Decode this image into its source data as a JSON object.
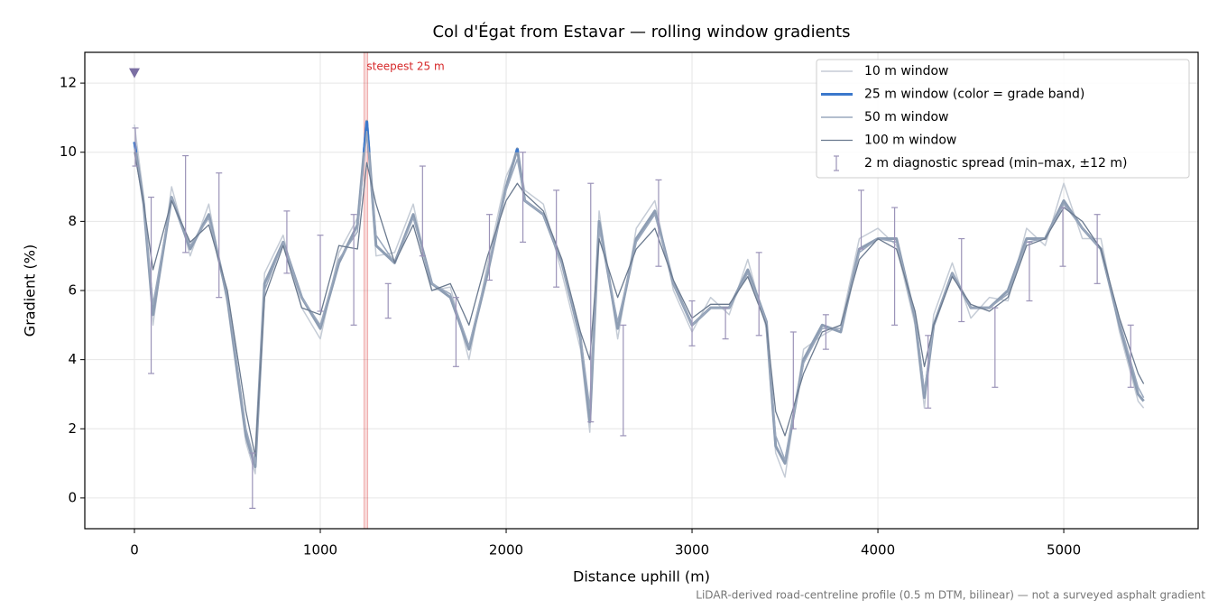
{
  "chart_data": {
    "type": "line",
    "title": "Col d'Égat from Estavar — rolling window gradients",
    "xlabel": "Distance uphill (m)",
    "ylabel": "Gradient (%)",
    "footnote": "LiDAR-derived road-centreline profile (0.5 m DTM, bilinear) — not a surveyed asphalt gradient",
    "x": [
      0,
      50,
      100,
      200,
      300,
      400,
      500,
      600,
      650,
      700,
      800,
      900,
      1000,
      1100,
      1200,
      1250,
      1300,
      1400,
      1500,
      1600,
      1700,
      1800,
      1900,
      2000,
      2060,
      2100,
      2200,
      2300,
      2400,
      2450,
      2500,
      2600,
      2700,
      2800,
      2900,
      3000,
      3100,
      3200,
      3300,
      3400,
      3450,
      3500,
      3600,
      3700,
      3800,
      3900,
      4000,
      4100,
      4200,
      4250,
      4300,
      4400,
      4500,
      4600,
      4700,
      4800,
      4900,
      5000,
      5100,
      5200,
      5300,
      5400,
      5430
    ],
    "series": [
      {
        "name": "10 m window",
        "color": "#c5ccd6",
        "width": 1.5,
        "values": [
          10.8,
          8.7,
          5.0,
          9.0,
          7.0,
          8.5,
          5.6,
          1.6,
          0.7,
          6.5,
          7.6,
          5.5,
          4.6,
          7.1,
          8.1,
          10.7,
          7.0,
          7.1,
          8.5,
          6.0,
          6.1,
          4.0,
          6.8,
          9.3,
          10.0,
          8.9,
          8.5,
          6.5,
          4.3,
          1.9,
          8.3,
          4.6,
          7.8,
          8.6,
          6.0,
          4.8,
          5.8,
          5.3,
          6.9,
          4.9,
          1.3,
          0.6,
          4.3,
          4.7,
          5.0,
          7.5,
          7.8,
          7.3,
          5.0,
          2.6,
          5.3,
          6.8,
          5.2,
          5.8,
          5.7,
          7.8,
          7.3,
          9.1,
          7.5,
          7.5,
          4.8,
          2.8,
          2.6
        ]
      },
      {
        "name": "25 m window (color = grade band)",
        "color": "#8d9db3",
        "width": 3,
        "band_color": "#3b78cc",
        "band_above": 10,
        "values": [
          10.3,
          8.5,
          5.3,
          8.7,
          7.2,
          8.2,
          5.8,
          1.8,
          0.9,
          6.2,
          7.4,
          5.8,
          4.9,
          6.8,
          7.9,
          10.9,
          7.3,
          6.8,
          8.2,
          6.2,
          5.8,
          4.3,
          6.5,
          9.0,
          10.1,
          8.6,
          8.2,
          6.8,
          4.6,
          2.2,
          8.0,
          4.9,
          7.5,
          8.3,
          6.2,
          5.0,
          5.5,
          5.5,
          6.6,
          5.1,
          1.5,
          1.0,
          4.0,
          5.0,
          4.8,
          7.2,
          7.5,
          7.5,
          5.2,
          2.9,
          5.0,
          6.5,
          5.5,
          5.5,
          6.0,
          7.5,
          7.5,
          8.6,
          7.8,
          7.2,
          5.0,
          3.0,
          2.8
        ]
      },
      {
        "name": "50 m window",
        "color": "#9aa8bd",
        "width": 1.5,
        "values": [
          10.1,
          8.5,
          5.6,
          8.7,
          7.3,
          8.1,
          5.9,
          2.0,
          1.0,
          6.0,
          7.4,
          5.8,
          5.0,
          6.9,
          7.7,
          10.6,
          7.6,
          6.8,
          8.1,
          6.2,
          5.9,
          4.4,
          6.6,
          8.9,
          9.8,
          8.6,
          8.2,
          6.8,
          4.7,
          2.6,
          7.8,
          5.1,
          7.4,
          8.2,
          6.2,
          5.0,
          5.5,
          5.5,
          6.5,
          5.1,
          1.8,
          1.1,
          3.9,
          4.9,
          4.9,
          7.1,
          7.5,
          7.4,
          5.3,
          3.1,
          5.0,
          6.5,
          5.5,
          5.5,
          5.9,
          7.4,
          7.5,
          8.5,
          7.8,
          7.2,
          5.1,
          3.2,
          2.9
        ]
      },
      {
        "name": "100 m window",
        "color": "#6b7a8f",
        "width": 1.3,
        "values": [
          10.0,
          8.5,
          6.6,
          8.6,
          7.4,
          7.9,
          6.0,
          2.5,
          1.2,
          5.8,
          7.3,
          5.5,
          5.3,
          7.3,
          7.2,
          9.7,
          8.5,
          6.8,
          7.9,
          6.0,
          6.2,
          5.0,
          7.0,
          8.6,
          9.1,
          8.8,
          8.3,
          6.9,
          4.8,
          4.0,
          7.5,
          5.8,
          7.2,
          7.8,
          6.3,
          5.2,
          5.6,
          5.6,
          6.4,
          5.0,
          2.5,
          1.8,
          3.6,
          4.8,
          5.0,
          6.9,
          7.5,
          7.2,
          5.4,
          3.8,
          5.0,
          6.4,
          5.6,
          5.4,
          5.8,
          7.3,
          7.5,
          8.4,
          8.0,
          7.2,
          5.2,
          3.6,
          3.3
        ]
      }
    ],
    "errorbars": {
      "name": "2 m diagnostic spread (min–max, ±12 m)",
      "color": "#9b93b8",
      "x": [
        5,
        90,
        275,
        455,
        635,
        820,
        1000,
        1180,
        1365,
        1550,
        1730,
        1910,
        2090,
        2270,
        2455,
        2630,
        2820,
        3000,
        3180,
        3360,
        3545,
        3720,
        3910,
        4090,
        4270,
        4450,
        4630,
        4815,
        4995,
        5180,
        5360
      ],
      "low": [
        9.6,
        3.6,
        7.1,
        5.8,
        -0.3,
        6.5,
        5.4,
        5.0,
        5.2,
        7.0,
        3.8,
        6.3,
        7.4,
        6.1,
        2.2,
        1.8,
        6.7,
        4.4,
        4.6,
        4.7,
        2.0,
        4.3,
        7.2,
        5.0,
        2.6,
        5.1,
        3.2,
        5.7,
        6.7,
        6.2,
        3.2
      ],
      "high": [
        10.7,
        8.7,
        9.9,
        9.4,
        1.3,
        8.3,
        7.6,
        8.2,
        6.2,
        9.6,
        5.8,
        8.2,
        10.0,
        8.9,
        9.1,
        5.0,
        9.2,
        5.7,
        5.5,
        7.1,
        4.8,
        5.3,
        8.9,
        8.4,
        4.7,
        7.5,
        5.5,
        7.4,
        8.4,
        8.2,
        5.0
      ]
    },
    "marker": {
      "x": 0,
      "y": 12.3,
      "color": "#7b6fa3"
    },
    "highlight": {
      "label": "steepest 25 m",
      "x_range": [
        1235,
        1255
      ],
      "color": "#d62728"
    },
    "xlim": [
      -267,
      5723
    ],
    "ylim": [
      -0.89,
      12.89
    ],
    "xticks": [
      0,
      1000,
      2000,
      3000,
      4000,
      5000
    ],
    "yticks": [
      0,
      2,
      4,
      6,
      8,
      10,
      12
    ],
    "grid": true,
    "legend": "upper right"
  }
}
